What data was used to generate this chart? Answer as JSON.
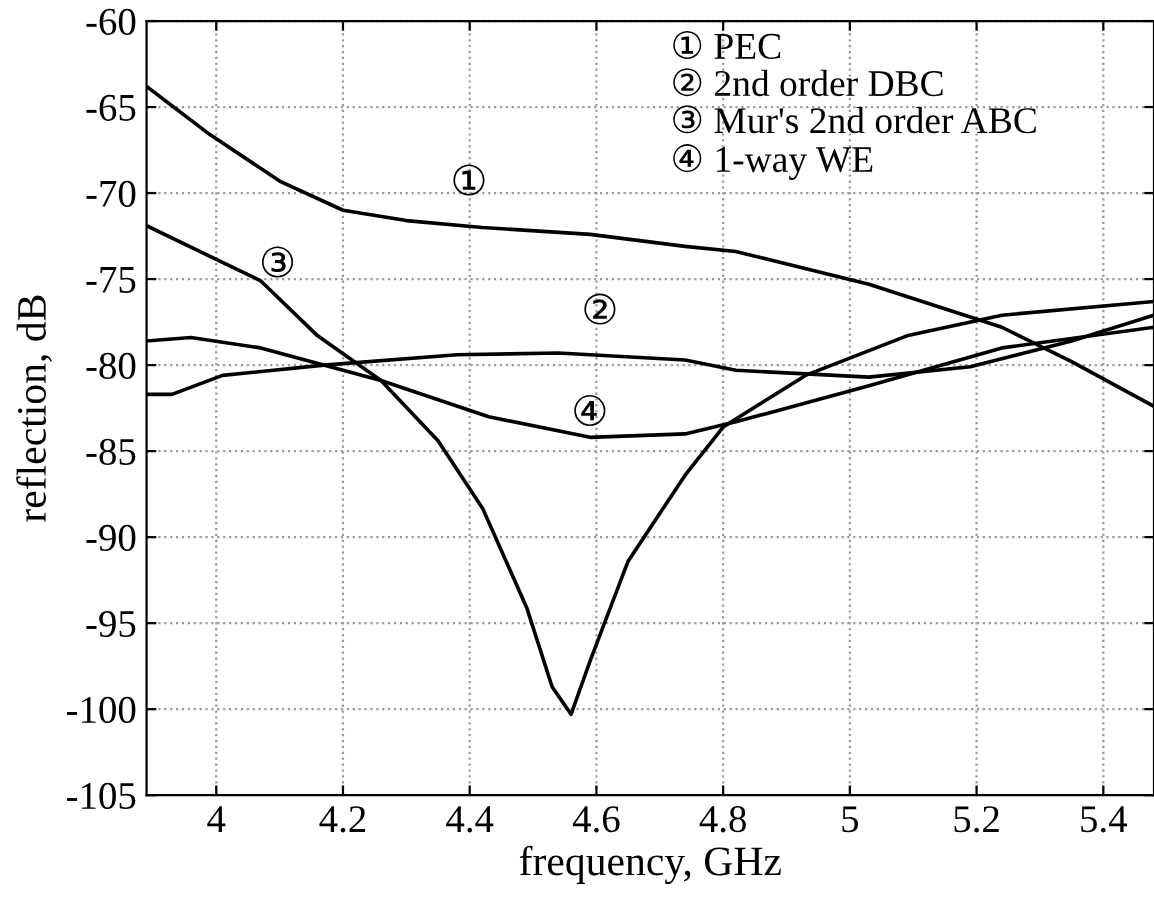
{
  "chart_data": {
    "type": "line",
    "xlabel": "frequency, GHz",
    "ylabel": "reflection, dB",
    "xlim": [
      3.89,
      5.48
    ],
    "ylim": [
      -105,
      -60
    ],
    "xticks": [
      4,
      4.2,
      4.4,
      4.6,
      4.8,
      5,
      5.2,
      5.4
    ],
    "yticks": [
      -105,
      -100,
      -95,
      -90,
      -85,
      -80,
      -75,
      -70,
      -65,
      -60
    ],
    "grid": true,
    "line_style": "solid",
    "marker": "none",
    "series": [
      {
        "name": "①",
        "color": "#000000",
        "x": [
          3.89,
          3.99,
          4.1,
          4.2,
          4.3,
          4.42,
          4.59,
          4.74,
          4.82,
          5.03,
          5.24,
          5.35,
          5.48
        ],
        "values": [
          -63.8,
          -66.6,
          -69.3,
          -71.0,
          -71.6,
          -72.0,
          -72.4,
          -73.1,
          -73.4,
          -75.3,
          -77.8,
          -79.8,
          -82.4
        ]
      },
      {
        "name": "②",
        "color": "#000000",
        "x": [
          3.89,
          3.93,
          4.01,
          4.17,
          4.38,
          4.54,
          4.74,
          4.82,
          5.03,
          5.19,
          5.35,
          5.48
        ],
        "values": [
          -81.7,
          -81.7,
          -80.6,
          -80.0,
          -79.4,
          -79.3,
          -79.7,
          -80.3,
          -80.7,
          -80.1,
          -78.6,
          -77.1
        ]
      },
      {
        "name": "③",
        "color": "#000000",
        "x": [
          3.89,
          4.07,
          4.16,
          4.26,
          4.35,
          4.42,
          4.49,
          4.53,
          4.56,
          4.59,
          4.65,
          4.74,
          4.8,
          4.93,
          5.09,
          5.24,
          5.48
        ],
        "values": [
          -71.9,
          -75.1,
          -78.3,
          -80.9,
          -84.4,
          -88.3,
          -94.1,
          -98.7,
          -100.3,
          -97.2,
          -91.4,
          -86.4,
          -83.6,
          -80.6,
          -78.3,
          -77.1,
          -76.3
        ]
      },
      {
        "name": "④",
        "color": "#000000",
        "x": [
          3.89,
          3.96,
          4.07,
          4.26,
          4.43,
          4.59,
          4.74,
          4.82,
          5.03,
          5.24,
          5.48
        ],
        "values": [
          -78.6,
          -78.4,
          -79.0,
          -80.9,
          -83.0,
          -84.2,
          -84.0,
          -83.3,
          -81.2,
          -79.0,
          -77.8
        ]
      }
    ],
    "annotations": [
      "① PEC",
      "② 2nd order DBC",
      "③ Mur's 2nd order ABC",
      "④ 1-way WE"
    ]
  }
}
